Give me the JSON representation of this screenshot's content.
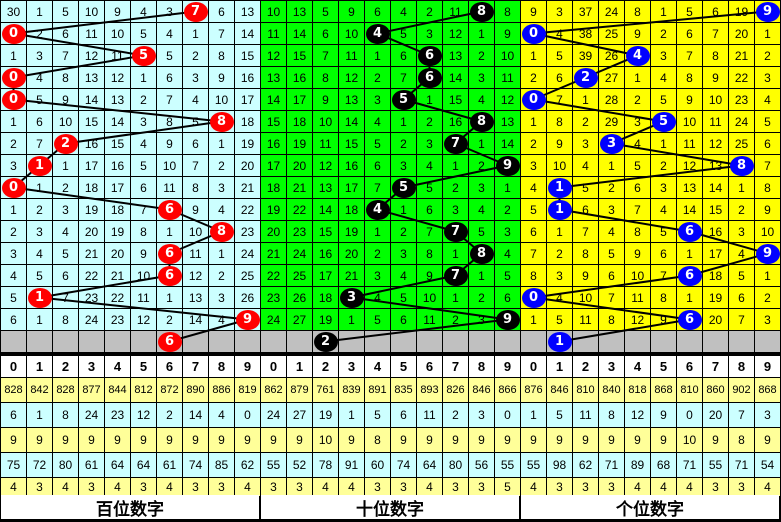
{
  "colors": {
    "bai_bg": "#ccffff",
    "bai_ball": "#ff0000",
    "shi_bg": "#00ff00",
    "shi_ball": "#000000",
    "ge_bg": "#ffff00",
    "ge_ball": "#0000ff",
    "prediction_bg": "#c0c0c0",
    "stat_yellow": "#ffff99",
    "stat_cyan": "#ccffff"
  },
  "header_digits": [
    "0",
    "1",
    "2",
    "3",
    "4",
    "5",
    "6",
    "7",
    "8",
    "9"
  ],
  "panels": [
    {
      "label": "百位数字",
      "rows": [
        [
          30,
          1,
          5,
          10,
          9,
          4,
          3,
          7,
          6,
          13
        ],
        [
          0,
          2,
          6,
          11,
          10,
          5,
          4,
          1,
          7,
          14
        ],
        [
          1,
          3,
          7,
          12,
          11,
          5,
          5,
          2,
          8,
          15
        ],
        [
          0,
          4,
          8,
          13,
          12,
          1,
          6,
          3,
          9,
          16
        ],
        [
          0,
          5,
          9,
          14,
          13,
          2,
          7,
          4,
          10,
          17
        ],
        [
          1,
          6,
          10,
          15,
          14,
          3,
          8,
          5,
          8,
          18
        ],
        [
          2,
          7,
          2,
          16,
          15,
          4,
          9,
          6,
          1,
          19
        ],
        [
          3,
          1,
          1,
          17,
          16,
          5,
          10,
          7,
          2,
          20
        ],
        [
          0,
          1,
          2,
          18,
          17,
          6,
          11,
          8,
          3,
          21
        ],
        [
          1,
          2,
          3,
          19,
          18,
          7,
          6,
          9,
          4,
          22
        ],
        [
          2,
          3,
          4,
          20,
          19,
          8,
          1,
          10,
          8,
          23
        ],
        [
          3,
          4,
          5,
          21,
          20,
          9,
          6,
          11,
          1,
          24
        ],
        [
          4,
          5,
          6,
          22,
          21,
          10,
          6,
          12,
          2,
          25
        ],
        [
          5,
          1,
          7,
          23,
          22,
          11,
          1,
          13,
          3,
          26
        ],
        [
          6,
          1,
          8,
          24,
          23,
          12,
          2,
          14,
          4,
          9
        ]
      ],
      "hits": [
        7,
        0,
        5,
        0,
        0,
        8,
        2,
        1,
        0,
        6,
        8,
        6,
        6,
        1,
        9
      ],
      "prediction": 6,
      "stats": [
        [
          828,
          842,
          828,
          877,
          844,
          812,
          872,
          890,
          886,
          819
        ],
        [
          6,
          1,
          8,
          24,
          23,
          12,
          2,
          14,
          4,
          0
        ],
        [
          9,
          9,
          9,
          9,
          9,
          9,
          9,
          9,
          9,
          9
        ],
        [
          75,
          72,
          80,
          61,
          64,
          64,
          61,
          74,
          85,
          62
        ],
        [
          4,
          3,
          4,
          3,
          4,
          3,
          4,
          3,
          3,
          4
        ]
      ]
    },
    {
      "label": "十位数字",
      "rows": [
        [
          10,
          13,
          5,
          9,
          6,
          4,
          2,
          11,
          8,
          8
        ],
        [
          11,
          14,
          6,
          10,
          4,
          5,
          3,
          12,
          1,
          9
        ],
        [
          12,
          15,
          7,
          11,
          1,
          6,
          6,
          13,
          2,
          10
        ],
        [
          13,
          16,
          8,
          12,
          2,
          7,
          6,
          14,
          3,
          11
        ],
        [
          14,
          17,
          9,
          13,
          3,
          5,
          1,
          15,
          4,
          12
        ],
        [
          15,
          18,
          10,
          14,
          4,
          1,
          2,
          16,
          8,
          13
        ],
        [
          16,
          19,
          11,
          15,
          5,
          2,
          3,
          7,
          1,
          14
        ],
        [
          17,
          20,
          12,
          16,
          6,
          3,
          4,
          1,
          2,
          9
        ],
        [
          18,
          21,
          13,
          17,
          7,
          5,
          5,
          2,
          3,
          1
        ],
        [
          19,
          22,
          14,
          18,
          4,
          1,
          6,
          3,
          4,
          2
        ],
        [
          20,
          23,
          15,
          19,
          1,
          2,
          7,
          7,
          5,
          3
        ],
        [
          21,
          24,
          16,
          20,
          2,
          3,
          8,
          1,
          8,
          4
        ],
        [
          22,
          25,
          17,
          21,
          3,
          4,
          9,
          7,
          1,
          5
        ],
        [
          23,
          26,
          18,
          3,
          4,
          5,
          10,
          1,
          2,
          6
        ],
        [
          24,
          27,
          19,
          1,
          5,
          6,
          11,
          2,
          3,
          9
        ]
      ],
      "hits": [
        8,
        4,
        6,
        6,
        5,
        8,
        7,
        9,
        5,
        4,
        7,
        8,
        7,
        3,
        9
      ],
      "prediction": 2,
      "stats": [
        [
          862,
          879,
          761,
          839,
          891,
          835,
          893,
          826,
          846,
          866
        ],
        [
          24,
          27,
          19,
          1,
          5,
          6,
          11,
          2,
          3,
          0
        ],
        [
          9,
          9,
          10,
          9,
          8,
          9,
          9,
          9,
          9,
          9
        ],
        [
          55,
          52,
          78,
          91,
          60,
          74,
          64,
          80,
          56,
          55
        ],
        [
          3,
          3,
          4,
          4,
          3,
          3,
          4,
          3,
          3,
          5
        ]
      ]
    },
    {
      "label": "个位数字",
      "rows": [
        [
          9,
          3,
          37,
          24,
          8,
          1,
          5,
          6,
          19,
          9
        ],
        [
          0,
          4,
          38,
          25,
          9,
          2,
          6,
          7,
          20,
          1
        ],
        [
          1,
          5,
          39,
          26,
          4,
          3,
          7,
          8,
          21,
          2
        ],
        [
          2,
          6,
          2,
          27,
          1,
          4,
          8,
          9,
          22,
          3
        ],
        [
          0,
          7,
          1,
          28,
          2,
          5,
          9,
          10,
          23,
          4
        ],
        [
          1,
          8,
          2,
          29,
          3,
          5,
          10,
          11,
          24,
          5
        ],
        [
          2,
          9,
          3,
          3,
          4,
          1,
          11,
          12,
          25,
          6
        ],
        [
          3,
          10,
          4,
          1,
          5,
          2,
          12,
          13,
          8,
          7
        ],
        [
          4,
          1,
          5,
          2,
          6,
          3,
          13,
          14,
          1,
          8
        ],
        [
          5,
          1,
          6,
          3,
          7,
          4,
          14,
          15,
          2,
          9
        ],
        [
          6,
          1,
          7,
          4,
          8,
          5,
          6,
          16,
          3,
          10
        ],
        [
          7,
          2,
          8,
          5,
          9,
          6,
          1,
          17,
          4,
          9
        ],
        [
          8,
          3,
          9,
          6,
          10,
          7,
          6,
          18,
          5,
          1
        ],
        [
          0,
          4,
          10,
          7,
          11,
          8,
          1,
          19,
          6,
          2
        ],
        [
          1,
          5,
          11,
          8,
          12,
          9,
          6,
          20,
          7,
          3
        ]
      ],
      "hits": [
        9,
        0,
        4,
        2,
        0,
        5,
        3,
        8,
        1,
        1,
        6,
        9,
        6,
        0,
        6
      ],
      "prediction": 1,
      "stats": [
        [
          876,
          846,
          810,
          840,
          818,
          868,
          810,
          860,
          902,
          868
        ],
        [
          1,
          5,
          11,
          8,
          12,
          9,
          0,
          20,
          7,
          3
        ],
        [
          9,
          9,
          9,
          9,
          9,
          9,
          10,
          9,
          8,
          9
        ],
        [
          55,
          98,
          62,
          71,
          89,
          68,
          71,
          55,
          71,
          54
        ],
        [
          4,
          3,
          3,
          3,
          4,
          4,
          4,
          3,
          3,
          4
        ]
      ]
    }
  ]
}
